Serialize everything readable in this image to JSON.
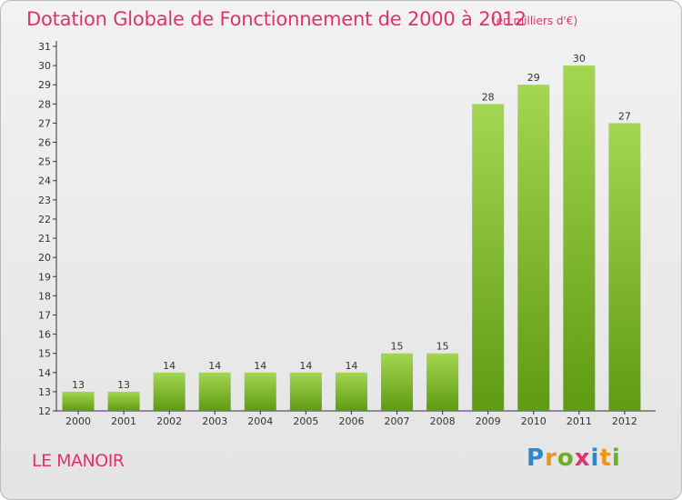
{
  "header": {
    "title": "Dotation Globale de Fonctionnement de 2000 à 2012",
    "unit": "(en milliers d'€)"
  },
  "footer": {
    "place": "LE MANOIR",
    "logo_letters": [
      "P",
      "r",
      "o",
      "x",
      "i",
      "t",
      "i"
    ],
    "logo_colors": [
      "#2f86c9",
      "#f0921e",
      "#6ab023",
      "#e0326f",
      "#2f86c9",
      "#f0921e",
      "#6ab023"
    ]
  },
  "colors": {
    "bar_light": "#a4d651",
    "bar_dark": "#5e9b12",
    "title": "#e0326f",
    "axis": "#333333"
  },
  "chart_data": {
    "type": "bar",
    "title": "Dotation Globale de Fonctionnement de 2000 à 2012",
    "subtitle": "(en milliers d'€)",
    "xlabel": "",
    "ylabel": "",
    "categories": [
      "2000",
      "2001",
      "2002",
      "2003",
      "2004",
      "2005",
      "2006",
      "2007",
      "2008",
      "2009",
      "2010",
      "2011",
      "2012"
    ],
    "values": [
      13,
      13,
      14,
      14,
      14,
      14,
      14,
      15,
      15,
      28,
      29,
      30,
      27
    ],
    "ylim": [
      12,
      31
    ],
    "yticks": [
      12,
      13,
      14,
      15,
      16,
      17,
      18,
      19,
      20,
      21,
      22,
      23,
      24,
      25,
      26,
      27,
      28,
      29,
      30,
      31
    ],
    "grid": false,
    "legend": "none"
  }
}
